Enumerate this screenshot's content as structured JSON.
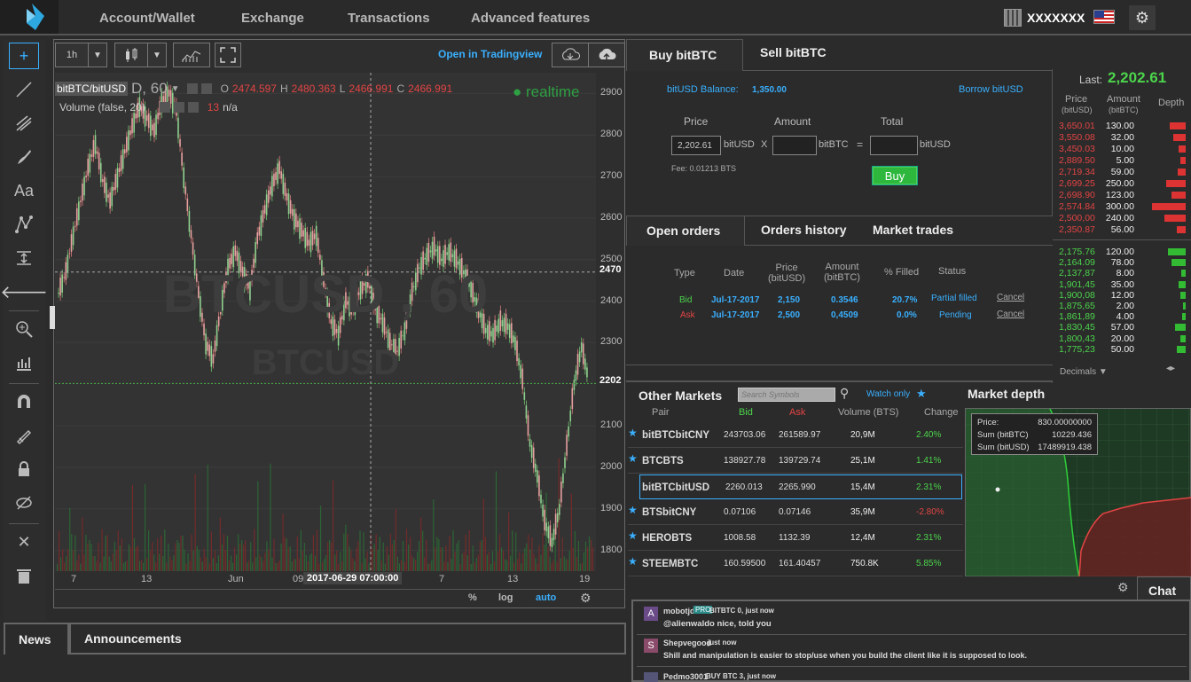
{
  "nav": {
    "items": [
      "Account/Wallet",
      "Exchange",
      "Transactions",
      "Advanced features"
    ],
    "account_name": "XXXXXXX"
  },
  "chart": {
    "interval": "1h",
    "open_in_tv": "Open in Tradingview",
    "symbol": "bitBTC/bitUSD",
    "symbol_suffix": "D, 60",
    "ohlc": {
      "o_label": "O",
      "o": "2474.597",
      "h_label": "H",
      "h": "2480.363",
      "l_label": "L",
      "l": "2466.991",
      "c_label": "C",
      "c": "2466.991"
    },
    "realtime": "realtime",
    "volume_label": "Volume (false, 20)",
    "volume_value": "13",
    "volume_na": "n/a",
    "watermark_main": "BTCUSD , 60",
    "watermark_sub": "BTCUSD",
    "y_ticks": [
      "2900",
      "2800",
      "2700",
      "2600",
      "2500",
      "2400",
      "2300",
      "2100",
      "2000",
      "1900",
      "1800"
    ],
    "price_label_1": "2470",
    "price_label_2": "2202",
    "x_ticks": [
      "7",
      "13",
      "Jun",
      "09",
      "7",
      "13",
      "19"
    ],
    "crosshair_time": "2017-06-29 07:00:00",
    "bottom_opts": {
      "percent": "%",
      "log": "log",
      "auto": "auto"
    }
  },
  "chart_data": {
    "type": "line",
    "title": "",
    "xlabel": "",
    "ylabel": "",
    "ylim": [
      1750,
      2950
    ],
    "series": [
      {
        "name": "",
        "values": [
          2420,
          2470,
          2560,
          2640,
          2720,
          2780,
          2690,
          2640,
          2700,
          2760,
          2820,
          2870,
          2840,
          2810,
          2880,
          2900,
          2860,
          2700,
          2560,
          2420,
          2300,
          2260,
          2380,
          2480,
          2520,
          2470,
          2430,
          2550,
          2620,
          2680,
          2720,
          2650,
          2600,
          2570,
          2540,
          2560,
          2450,
          2350,
          2320,
          2400,
          2380,
          2430,
          2450,
          2380,
          2350,
          2300,
          2280,
          2330,
          2420,
          2480,
          2510,
          2530,
          2500,
          2520,
          2500,
          2470,
          2430,
          2380,
          2330,
          2320,
          2350,
          2340,
          2300,
          2210,
          2060,
          1980,
          1870,
          1820,
          1900,
          2050,
          2200,
          2290,
          2210
        ]
      }
    ]
  },
  "buy": {
    "tab_buy": "Buy bitBTC",
    "tab_sell": "Sell bitBTC",
    "balance_label": "bitUSD Balance:",
    "balance_value": "1,350.00",
    "borrow": "Borrow bitUSD",
    "price_label": "Price",
    "amount_label": "Amount",
    "total_label": "Total",
    "price_value": "2,202.61",
    "price_unit": "bitUSD",
    "x": "X",
    "amount_unit": "bitBTC",
    "eq": "=",
    "total_unit": "bitUSD",
    "fee": "Fee: 0.01213 BTS",
    "buy_button": "Buy"
  },
  "orderbook": {
    "last_label": "Last:",
    "last_value": "2,202.61",
    "col_price": "Price",
    "col_price_unit": "(bitUSD)",
    "col_amount": "Amount",
    "col_amount_unit": "(bitBTC)",
    "col_depth": "Depth",
    "asks": [
      {
        "price": "3,650.01",
        "amount": "130.00",
        "depth": 0.45
      },
      {
        "price": "3,550.08",
        "amount": "32.00",
        "depth": 0.35
      },
      {
        "price": "3,450.03",
        "amount": "10.00",
        "depth": 0.2
      },
      {
        "price": "2,889.50",
        "amount": "5.00",
        "depth": 0.15
      },
      {
        "price": "2,719.34",
        "amount": "59.00",
        "depth": 0.22
      },
      {
        "price": "2,699.25",
        "amount": "250.00",
        "depth": 0.55
      },
      {
        "price": "2,698.90",
        "amount": "123.00",
        "depth": 0.4
      },
      {
        "price": "2,574.84",
        "amount": "300.00",
        "depth": 0.95
      },
      {
        "price": "2,500,00",
        "amount": "240.00",
        "depth": 0.6
      },
      {
        "price": "2,350.87",
        "amount": "56.00",
        "depth": 0.25
      }
    ],
    "bids": [
      {
        "price": "2,175.76",
        "amount": "120.00",
        "depth": 0.5
      },
      {
        "price": "2,164.09",
        "amount": "78.00",
        "depth": 0.4
      },
      {
        "price": "2,137,87",
        "amount": "8.00",
        "depth": 0.12
      },
      {
        "price": "1,901,45",
        "amount": "35.00",
        "depth": 0.2
      },
      {
        "price": "1,900,08",
        "amount": "12.00",
        "depth": 0.14
      },
      {
        "price": "1,875,65",
        "amount": "2.00",
        "depth": 0.08
      },
      {
        "price": "1,861,89",
        "amount": "4.00",
        "depth": 0.1
      },
      {
        "price": "1,830,45",
        "amount": "57.00",
        "depth": 0.3
      },
      {
        "price": "1,800,43",
        "amount": "20.00",
        "depth": 0.16
      },
      {
        "price": "1,775,23",
        "amount": "50.00",
        "depth": 0.25
      }
    ],
    "decimals": "Decimals"
  },
  "orders": {
    "tabs": [
      "Open orders",
      "Orders history",
      "Market trades"
    ],
    "headers": [
      "Type",
      "Date",
      "Price\n(bitUSD)",
      "Amount\n(bitBTC)",
      "% Filled",
      "Status"
    ],
    "rows": [
      {
        "type": "Bid",
        "date": "Jul-17-2017",
        "price": "2,150",
        "amount": "0.3546",
        "filled": "20.7%",
        "status": "Partial filled",
        "cancel": "Cancel"
      },
      {
        "type": "Ask",
        "date": "Jul-17-2017",
        "price": "2,500",
        "amount": "0,4509",
        "filled": "0.0%",
        "status": "Pending",
        "cancel": "Cancel"
      }
    ]
  },
  "markets": {
    "title": "Other Markets",
    "search_placeholder": "Search Symbols",
    "watch_only": "Watch only",
    "headers": [
      "Pair",
      "Bid",
      "Ask",
      "Volume (BTS)",
      "Change"
    ],
    "rows": [
      {
        "pair": "bitBTCbitCNY",
        "bid": "243703.06",
        "ask": "261589.97",
        "volume": "20,9M",
        "change": "2.40%",
        "up": true
      },
      {
        "pair": "BTCBTS",
        "bid": "138927.78",
        "ask": "139729.74",
        "volume": "25,1M",
        "change": "1.41%",
        "up": true
      },
      {
        "pair": "bitBTCbitUSD",
        "bid": "2260.013",
        "ask": "2265.990",
        "volume": "15,4M",
        "change": "2.31%",
        "up": true
      },
      {
        "pair": "BTSbitCNY",
        "bid": "0.07106",
        "ask": "0.07146",
        "volume": "35,9M",
        "change": "-2.80%",
        "up": false
      },
      {
        "pair": "HEROBTS",
        "bid": "1008.58",
        "ask": "1132.39",
        "volume": "12,4M",
        "change": "2.31%",
        "up": true
      },
      {
        "pair": "STEEMBTC",
        "bid": "160.59500",
        "ask": "161.40457",
        "volume": "750.8K",
        "change": "5.85%",
        "up": true
      }
    ]
  },
  "depth": {
    "title": "Market depth",
    "price_label": "Price:",
    "price_value": "830.00000000",
    "sum_btc_label": "Sum (bitBTC)",
    "sum_btc_value": "10229.436",
    "sum_usd_label": "Sum (bitUSD)",
    "sum_usd_value": "17489919.438"
  },
  "chat": {
    "title": "Chat",
    "messages": [
      {
        "avatar": "A",
        "user": "mobotjd",
        "badge": "PRO",
        "extra": "BITBTC 0, just now",
        "text": "@alienwaldo nice, told you"
      },
      {
        "avatar": "S",
        "user": "Shepvegood",
        "badge": "",
        "extra": "just now",
        "text": "Shill and manipulation is easier to stop/use when you build the client like it is supposed to look."
      },
      {
        "avatar": "",
        "user": "Pedmo3001",
        "badge": "",
        "extra": "BUY BTC 3, just now",
        "text": ""
      }
    ]
  },
  "news": {
    "tab_news": "News",
    "tab_announcements": "Announcements"
  },
  "colors": {
    "accent": "#3ab0ff",
    "up": "#4cd44c",
    "down": "#e34444",
    "buy_button": "#2db83d"
  }
}
